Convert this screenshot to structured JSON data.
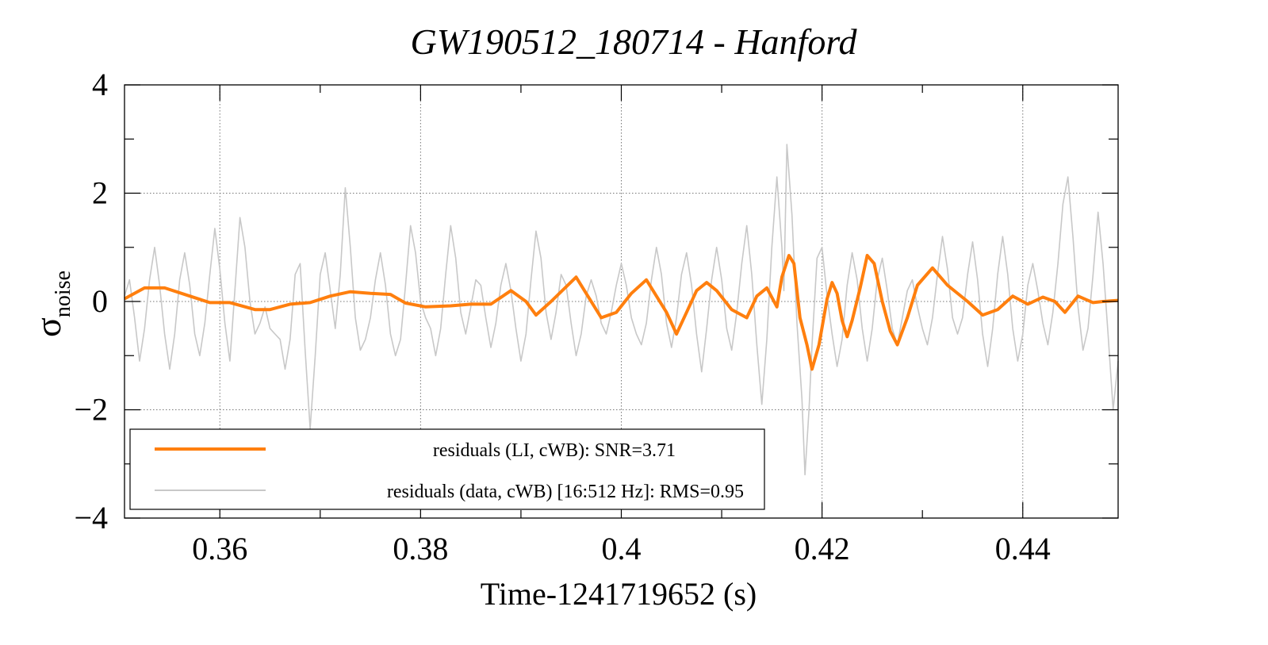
{
  "chart_data": {
    "type": "line",
    "title": "GW190512_180714 - Hanford",
    "xlabel": "Time-1241719652 (s)",
    "ylabel_main": "σ",
    "ylabel_sub": "noise",
    "xlim": [
      0.3505,
      0.4495
    ],
    "ylim": [
      -4,
      4
    ],
    "x_ticks": [
      0.36,
      0.38,
      0.4,
      0.42,
      0.44
    ],
    "x_tick_labels": [
      "0.36",
      "0.38",
      "0.4",
      "0.42",
      "0.44"
    ],
    "y_ticks": [
      -4,
      -2,
      0,
      2,
      4
    ],
    "y_tick_labels": [
      "−4",
      "−2",
      "0",
      "2",
      "4"
    ],
    "grid": true,
    "legend_position": "bottom-left",
    "series": [
      {
        "name": "residuals (LI, cWB): SNR=3.71",
        "color": "#ff7f0e",
        "points": [
          [
            0.3505,
            0.05
          ],
          [
            0.3525,
            0.25
          ],
          [
            0.3545,
            0.25
          ],
          [
            0.357,
            0.1
          ],
          [
            0.359,
            -0.02
          ],
          [
            0.361,
            -0.02
          ],
          [
            0.3635,
            -0.15
          ],
          [
            0.365,
            -0.15
          ],
          [
            0.367,
            -0.05
          ],
          [
            0.369,
            -0.02
          ],
          [
            0.371,
            0.1
          ],
          [
            0.373,
            0.18
          ],
          [
            0.375,
            0.15
          ],
          [
            0.377,
            0.13
          ],
          [
            0.3785,
            -0.03
          ],
          [
            0.3805,
            -0.1
          ],
          [
            0.383,
            -0.08
          ],
          [
            0.385,
            -0.05
          ],
          [
            0.387,
            -0.05
          ],
          [
            0.389,
            0.2
          ],
          [
            0.3905,
            0.0
          ],
          [
            0.3915,
            -0.25
          ],
          [
            0.393,
            0.0
          ],
          [
            0.3955,
            0.45
          ],
          [
            0.398,
            -0.3
          ],
          [
            0.3995,
            -0.2
          ],
          [
            0.401,
            0.15
          ],
          [
            0.4025,
            0.4
          ],
          [
            0.4045,
            -0.2
          ],
          [
            0.4055,
            -0.6
          ],
          [
            0.4065,
            -0.2
          ],
          [
            0.4075,
            0.2
          ],
          [
            0.4085,
            0.35
          ],
          [
            0.4095,
            0.2
          ],
          [
            0.411,
            -0.15
          ],
          [
            0.4125,
            -0.3
          ],
          [
            0.4135,
            0.1
          ],
          [
            0.4145,
            0.25
          ],
          [
            0.4155,
            -0.1
          ],
          [
            0.416,
            0.45
          ],
          [
            0.4167,
            0.85
          ],
          [
            0.4172,
            0.7
          ],
          [
            0.4178,
            -0.3
          ],
          [
            0.4185,
            -0.8
          ],
          [
            0.419,
            -1.25
          ],
          [
            0.4197,
            -0.8
          ],
          [
            0.4205,
            0.05
          ],
          [
            0.421,
            0.35
          ],
          [
            0.4215,
            0.15
          ],
          [
            0.422,
            -0.35
          ],
          [
            0.4225,
            -0.65
          ],
          [
            0.423,
            -0.35
          ],
          [
            0.4238,
            0.25
          ],
          [
            0.4245,
            0.85
          ],
          [
            0.4252,
            0.7
          ],
          [
            0.426,
            0.0
          ],
          [
            0.4268,
            -0.55
          ],
          [
            0.4275,
            -0.8
          ],
          [
            0.4285,
            -0.3
          ],
          [
            0.4295,
            0.3
          ],
          [
            0.431,
            0.62
          ],
          [
            0.4325,
            0.3
          ],
          [
            0.4345,
            0.0
          ],
          [
            0.436,
            -0.25
          ],
          [
            0.4375,
            -0.15
          ],
          [
            0.439,
            0.1
          ],
          [
            0.4405,
            -0.05
          ],
          [
            0.442,
            0.08
          ],
          [
            0.4432,
            0.0
          ],
          [
            0.4442,
            -0.2
          ],
          [
            0.4455,
            0.1
          ],
          [
            0.447,
            -0.02
          ],
          [
            0.448,
            0.0
          ],
          [
            0.4495,
            0.02
          ]
        ]
      },
      {
        "name": "residuals (data, cWB) [16:512 Hz]: RMS=0.95",
        "color": "#c8c8c8",
        "points": [
          [
            0.3505,
            0.1
          ],
          [
            0.351,
            0.4
          ],
          [
            0.3515,
            -0.3
          ],
          [
            0.352,
            -1.1
          ],
          [
            0.3525,
            -0.5
          ],
          [
            0.353,
            0.4
          ],
          [
            0.3535,
            1.0
          ],
          [
            0.354,
            0.3
          ],
          [
            0.3545,
            -0.6
          ],
          [
            0.355,
            -1.25
          ],
          [
            0.3555,
            -0.6
          ],
          [
            0.356,
            0.4
          ],
          [
            0.3565,
            0.9
          ],
          [
            0.357,
            0.3
          ],
          [
            0.3575,
            -0.6
          ],
          [
            0.358,
            -1.0
          ],
          [
            0.3585,
            -0.4
          ],
          [
            0.359,
            0.5
          ],
          [
            0.3595,
            1.35
          ],
          [
            0.36,
            0.6
          ],
          [
            0.3605,
            -0.4
          ],
          [
            0.361,
            -1.1
          ],
          [
            0.3615,
            0.2
          ],
          [
            0.362,
            1.55
          ],
          [
            0.3625,
            1.0
          ],
          [
            0.363,
            0.0
          ],
          [
            0.3635,
            -0.6
          ],
          [
            0.364,
            -0.4
          ],
          [
            0.3645,
            -0.1
          ],
          [
            0.365,
            -0.5
          ],
          [
            0.3655,
            -0.6
          ],
          [
            0.366,
            -0.7
          ],
          [
            0.3665,
            -1.25
          ],
          [
            0.367,
            -0.7
          ],
          [
            0.3675,
            0.5
          ],
          [
            0.368,
            0.7
          ],
          [
            0.3685,
            -0.9
          ],
          [
            0.369,
            -2.35
          ],
          [
            0.3695,
            -1.0
          ],
          [
            0.37,
            0.5
          ],
          [
            0.3705,
            0.9
          ],
          [
            0.371,
            0.2
          ],
          [
            0.3715,
            -0.5
          ],
          [
            0.372,
            0.5
          ],
          [
            0.3725,
            2.1
          ],
          [
            0.373,
            1.0
          ],
          [
            0.3735,
            -0.3
          ],
          [
            0.374,
            -0.9
          ],
          [
            0.3745,
            -0.7
          ],
          [
            0.375,
            -0.3
          ],
          [
            0.3755,
            0.4
          ],
          [
            0.376,
            0.9
          ],
          [
            0.3765,
            0.3
          ],
          [
            0.377,
            -0.6
          ],
          [
            0.3775,
            -1.0
          ],
          [
            0.378,
            -0.7
          ],
          [
            0.3785,
            0.3
          ],
          [
            0.379,
            1.4
          ],
          [
            0.3795,
            0.9
          ],
          [
            0.38,
            0.0
          ],
          [
            0.3805,
            -0.3
          ],
          [
            0.381,
            -0.5
          ],
          [
            0.3815,
            -1.0
          ],
          [
            0.382,
            -0.5
          ],
          [
            0.3825,
            0.5
          ],
          [
            0.383,
            1.4
          ],
          [
            0.3835,
            0.8
          ],
          [
            0.384,
            -0.2
          ],
          [
            0.3845,
            -0.6
          ],
          [
            0.385,
            -0.1
          ],
          [
            0.3855,
            0.4
          ],
          [
            0.386,
            0.3
          ],
          [
            0.3865,
            -0.3
          ],
          [
            0.387,
            -0.85
          ],
          [
            0.3875,
            -0.4
          ],
          [
            0.388,
            0.3
          ],
          [
            0.3885,
            0.7
          ],
          [
            0.389,
            0.2
          ],
          [
            0.3895,
            -0.5
          ],
          [
            0.39,
            -1.1
          ],
          [
            0.3905,
            -0.6
          ],
          [
            0.391,
            0.4
          ],
          [
            0.3915,
            1.3
          ],
          [
            0.392,
            0.8
          ],
          [
            0.3925,
            -0.2
          ],
          [
            0.393,
            -0.7
          ],
          [
            0.3935,
            -0.2
          ],
          [
            0.394,
            0.5
          ],
          [
            0.3945,
            0.3
          ],
          [
            0.395,
            -0.4
          ],
          [
            0.3955,
            -1.0
          ],
          [
            0.396,
            -0.6
          ],
          [
            0.3965,
            0.1
          ],
          [
            0.397,
            0.4
          ],
          [
            0.3975,
            0.1
          ],
          [
            0.398,
            -0.4
          ],
          [
            0.3985,
            -0.6
          ],
          [
            0.399,
            -0.2
          ],
          [
            0.3995,
            0.3
          ],
          [
            0.4,
            0.7
          ],
          [
            0.4005,
            0.3
          ],
          [
            0.401,
            -0.3
          ],
          [
            0.4015,
            -0.6
          ],
          [
            0.402,
            -0.8
          ],
          [
            0.4025,
            -0.4
          ],
          [
            0.403,
            0.4
          ],
          [
            0.4035,
            1.0
          ],
          [
            0.404,
            0.5
          ],
          [
            0.4045,
            -0.4
          ],
          [
            0.405,
            -0.85
          ],
          [
            0.4055,
            -0.3
          ],
          [
            0.406,
            0.5
          ],
          [
            0.4065,
            0.9
          ],
          [
            0.407,
            0.3
          ],
          [
            0.4075,
            -0.6
          ],
          [
            0.408,
            -1.3
          ],
          [
            0.4085,
            -0.5
          ],
          [
            0.409,
            0.4
          ],
          [
            0.4095,
            1.0
          ],
          [
            0.41,
            0.4
          ],
          [
            0.4105,
            -0.5
          ],
          [
            0.411,
            -0.9
          ],
          [
            0.4115,
            -0.2
          ],
          [
            0.412,
            0.7
          ],
          [
            0.4125,
            1.4
          ],
          [
            0.413,
            0.5
          ],
          [
            0.4135,
            -0.8
          ],
          [
            0.414,
            -1.9
          ],
          [
            0.4145,
            -0.7
          ],
          [
            0.415,
            1.0
          ],
          [
            0.4155,
            2.3
          ],
          [
            0.416,
            1.0
          ],
          [
            0.4162,
            0.2
          ],
          [
            0.4165,
            2.9
          ],
          [
            0.417,
            1.6
          ],
          [
            0.4175,
            -0.4
          ],
          [
            0.418,
            -1.8
          ],
          [
            0.4183,
            -3.2
          ],
          [
            0.4187,
            -2.0
          ],
          [
            0.419,
            -0.8
          ],
          [
            0.4195,
            0.8
          ],
          [
            0.42,
            1.0
          ],
          [
            0.4205,
            0.1
          ],
          [
            0.421,
            -0.6
          ],
          [
            0.4215,
            -1.2
          ],
          [
            0.422,
            -0.7
          ],
          [
            0.4225,
            0.3
          ],
          [
            0.423,
            0.9
          ],
          [
            0.4235,
            0.4
          ],
          [
            0.424,
            -0.5
          ],
          [
            0.4245,
            -1.1
          ],
          [
            0.425,
            -0.5
          ],
          [
            0.4255,
            0.4
          ],
          [
            0.426,
            0.8
          ],
          [
            0.4265,
            0.2
          ],
          [
            0.427,
            -0.5
          ],
          [
            0.4275,
            -0.8
          ],
          [
            0.428,
            -0.3
          ],
          [
            0.4285,
            0.2
          ],
          [
            0.429,
            0.4
          ],
          [
            0.4295,
            -0.1
          ],
          [
            0.43,
            -0.5
          ],
          [
            0.4305,
            -0.8
          ],
          [
            0.431,
            -0.3
          ],
          [
            0.4315,
            0.5
          ],
          [
            0.432,
            1.2
          ],
          [
            0.4325,
            0.6
          ],
          [
            0.433,
            -0.3
          ],
          [
            0.4335,
            -0.6
          ],
          [
            0.434,
            -0.3
          ],
          [
            0.4345,
            0.5
          ],
          [
            0.435,
            1.1
          ],
          [
            0.4355,
            0.4
          ],
          [
            0.436,
            -0.6
          ],
          [
            0.4365,
            -1.2
          ],
          [
            0.437,
            -0.5
          ],
          [
            0.4375,
            0.5
          ],
          [
            0.438,
            1.2
          ],
          [
            0.4385,
            0.5
          ],
          [
            0.439,
            -0.5
          ],
          [
            0.4395,
            -1.1
          ],
          [
            0.44,
            -0.6
          ],
          [
            0.4405,
            0.3
          ],
          [
            0.441,
            0.7
          ],
          [
            0.4415,
            0.2
          ],
          [
            0.442,
            -0.4
          ],
          [
            0.4425,
            -0.8
          ],
          [
            0.443,
            -0.2
          ],
          [
            0.4435,
            0.7
          ],
          [
            0.444,
            1.8
          ],
          [
            0.4445,
            2.3
          ],
          [
            0.445,
            1.2
          ],
          [
            0.4455,
            -0.1
          ],
          [
            0.446,
            -0.9
          ],
          [
            0.4465,
            -0.5
          ],
          [
            0.447,
            0.5
          ],
          [
            0.4475,
            1.65
          ],
          [
            0.448,
            0.7
          ],
          [
            0.4485,
            -0.6
          ],
          [
            0.449,
            -2.0
          ],
          [
            0.4495,
            -1.1
          ]
        ]
      }
    ]
  }
}
